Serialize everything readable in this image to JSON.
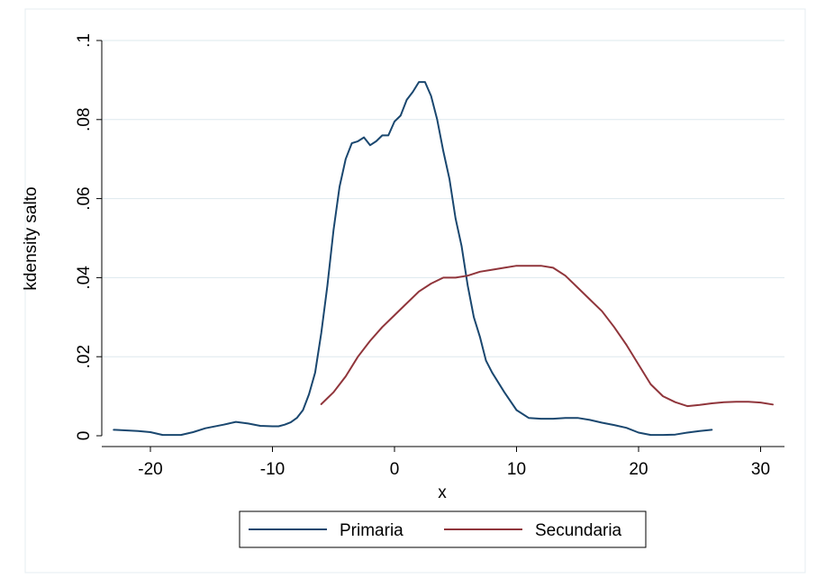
{
  "chart_data": {
    "type": "line",
    "title": "",
    "xlabel": "x",
    "ylabel": "kdensity salto",
    "xlim": [
      -23.5,
      31.5
    ],
    "ylim": [
      0,
      0.1
    ],
    "xticks": [
      -20,
      -10,
      0,
      10,
      20,
      30
    ],
    "xtick_labels": [
      "-20",
      "-10",
      "0",
      "10",
      "20",
      "30"
    ],
    "yticks": [
      0,
      0.02,
      0.04,
      0.06,
      0.08,
      0.1
    ],
    "ytick_labels": [
      "0",
      ".02",
      ".04",
      ".06",
      ".08",
      ".1"
    ],
    "grid": true,
    "legend_position": "bottom",
    "series": [
      {
        "name": "Primaria",
        "color": "#1a476f",
        "x": [
          -23,
          -21,
          -20,
          -19,
          -17.5,
          -16.5,
          -15.5,
          -14,
          -13,
          -12,
          -11,
          -10,
          -9.5,
          -9,
          -8.5,
          -8,
          -7.5,
          -7,
          -6.5,
          -6,
          -5.5,
          -5,
          -4.5,
          -4,
          -3.5,
          -3,
          -2.5,
          -2,
          -1.5,
          -1,
          -0.5,
          0,
          0.5,
          1,
          1.5,
          2,
          2.5,
          3,
          3.5,
          4,
          4.5,
          5,
          5.5,
          6,
          6.5,
          7,
          7.5,
          8,
          9,
          10,
          11,
          12,
          13,
          14,
          15,
          16,
          17,
          18,
          19,
          20,
          21,
          22,
          23,
          24,
          25,
          26
        ],
        "y": [
          0.0015,
          0.0012,
          0.0009,
          0.0002,
          0.0002,
          0.0009,
          0.0019,
          0.0028,
          0.0035,
          0.0031,
          0.0025,
          0.0024,
          0.0024,
          0.0028,
          0.0034,
          0.0045,
          0.0065,
          0.0105,
          0.016,
          0.026,
          0.038,
          0.052,
          0.063,
          0.07,
          0.074,
          0.0745,
          0.0755,
          0.0735,
          0.0745,
          0.076,
          0.076,
          0.0795,
          0.081,
          0.085,
          0.087,
          0.0895,
          0.0895,
          0.086,
          0.08,
          0.072,
          0.065,
          0.055,
          0.048,
          0.038,
          0.03,
          0.025,
          0.019,
          0.016,
          0.011,
          0.0065,
          0.0045,
          0.0043,
          0.0043,
          0.0045,
          0.0045,
          0.004,
          0.0033,
          0.0027,
          0.002,
          0.0008,
          0.0002,
          0.0002,
          0.0003,
          0.0008,
          0.0012,
          0.0015
        ]
      },
      {
        "name": "Secundaria",
        "color": "#90353b",
        "x": [
          -6,
          -5,
          -4,
          -3,
          -2,
          -1,
          0,
          1,
          2,
          3,
          4,
          5,
          6,
          7,
          8,
          9,
          10,
          11,
          12,
          13,
          14,
          15,
          16,
          17,
          18,
          19,
          20,
          21,
          22,
          23,
          24,
          25,
          26,
          27,
          28,
          29,
          30,
          31
        ],
        "y": [
          0.008,
          0.011,
          0.015,
          0.02,
          0.024,
          0.0275,
          0.0305,
          0.0335,
          0.0365,
          0.0385,
          0.04,
          0.04,
          0.0405,
          0.0415,
          0.042,
          0.0425,
          0.043,
          0.043,
          0.043,
          0.0425,
          0.0405,
          0.0375,
          0.0345,
          0.0315,
          0.0275,
          0.023,
          0.018,
          0.013,
          0.01,
          0.0085,
          0.0075,
          0.0078,
          0.0082,
          0.0085,
          0.0086,
          0.0086,
          0.0084,
          0.0079
        ]
      }
    ]
  }
}
